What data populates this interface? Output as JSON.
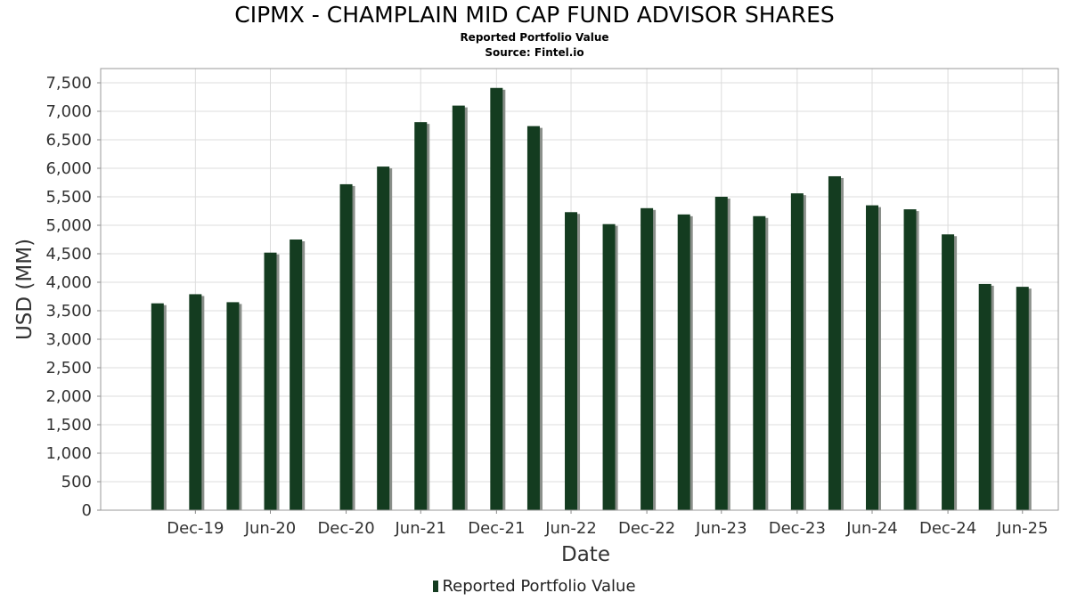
{
  "chart_data": {
    "type": "bar",
    "title": "CIPMX - CHAMPLAIN MID CAP FUND ADVISOR SHARES",
    "subtitle": "Reported Portfolio Value",
    "source": "Source: Fintel.io",
    "xlabel": "Date",
    "ylabel": "USD (MM)",
    "ylim": [
      0,
      7750
    ],
    "yticks": [
      0,
      500,
      1000,
      1500,
      2000,
      2500,
      3000,
      3500,
      4000,
      4500,
      5000,
      5500,
      6000,
      6500,
      7000,
      7500
    ],
    "ytick_labels": [
      "0",
      "500",
      "1,000",
      "1,500",
      "2,000",
      "2,500",
      "3,000",
      "3,500",
      "4,000",
      "4,500",
      "5,000",
      "5,500",
      "6,000",
      "6,500",
      "7,000",
      "7,500"
    ],
    "x_range": [
      "2019-05-15",
      "2025-09-25"
    ],
    "xticks": [
      "2019-12-31",
      "2020-06-30",
      "2020-12-31",
      "2021-06-30",
      "2021-12-31",
      "2022-06-30",
      "2022-12-31",
      "2023-06-30",
      "2023-12-31",
      "2024-06-30",
      "2024-12-31",
      "2025-06-30"
    ],
    "xtick_labels": [
      "Dec-19",
      "Jun-20",
      "Dec-20",
      "Jun-21",
      "Dec-21",
      "Jun-22",
      "Dec-22",
      "Jun-23",
      "Dec-23",
      "Jun-24",
      "Dec-24",
      "Jun-25"
    ],
    "grid": true,
    "legend_position": "bottom",
    "series": [
      {
        "name": "Reported Portfolio Value",
        "color": "#143c20",
        "x": [
          "2019-09-30",
          "2019-12-31",
          "2020-03-31",
          "2020-06-30",
          "2020-08-31",
          "2020-12-31",
          "2021-03-31",
          "2021-06-30",
          "2021-09-30",
          "2021-12-31",
          "2022-03-31",
          "2022-06-30",
          "2022-09-30",
          "2022-12-31",
          "2023-03-31",
          "2023-06-30",
          "2023-09-30",
          "2023-12-31",
          "2024-03-31",
          "2024-06-30",
          "2024-09-30",
          "2024-12-31",
          "2025-03-31",
          "2025-06-30"
        ],
        "values": [
          3630,
          3790,
          3650,
          4520,
          4750,
          5720,
          6030,
          6810,
          7100,
          7410,
          6740,
          5230,
          5020,
          5300,
          5190,
          5500,
          5160,
          5560,
          5860,
          5350,
          5280,
          4840,
          3970,
          3920
        ]
      }
    ]
  }
}
